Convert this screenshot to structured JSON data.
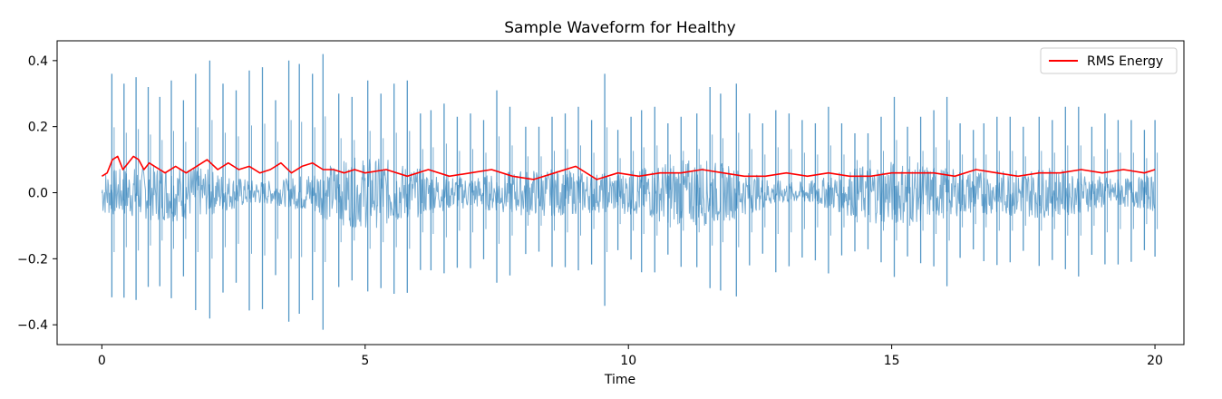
{
  "chart_data": {
    "type": "line",
    "title": "Sample Waveform for Healthy",
    "xlabel": "Time",
    "ylabel": "",
    "xlim": [
      -0.85,
      20.55
    ],
    "ylim": [
      -0.46,
      0.46
    ],
    "x_ticks": [
      0,
      5,
      10,
      15,
      20
    ],
    "x_tick_labels": [
      "0",
      "5",
      "10",
      "15",
      "20"
    ],
    "y_ticks": [
      -0.4,
      -0.2,
      0.0,
      0.2,
      0.4
    ],
    "y_tick_labels": [
      "−0.4",
      "−0.2",
      "0.0",
      "0.2",
      "0.4"
    ],
    "grid": false,
    "legend": {
      "placement": "top-right",
      "entries": [
        "RMS Energy"
      ]
    },
    "series": [
      {
        "kind": "waveform",
        "color": "#1f77b4",
        "opacity": 0.6,
        "x_start": 0,
        "x_end": 20,
        "noise_envelope": 0.11,
        "spikes": [
          {
            "x": 0.19,
            "amp": 0.36
          },
          {
            "x": 0.42,
            "amp": 0.33
          },
          {
            "x": 0.65,
            "amp": 0.35
          },
          {
            "x": 0.88,
            "amp": 0.32
          },
          {
            "x": 1.1,
            "amp": 0.29
          },
          {
            "x": 1.32,
            "amp": 0.34
          },
          {
            "x": 1.55,
            "amp": 0.28
          },
          {
            "x": 1.78,
            "amp": 0.36
          },
          {
            "x": 2.05,
            "amp": 0.4
          },
          {
            "x": 2.3,
            "amp": 0.33
          },
          {
            "x": 2.55,
            "amp": 0.31
          },
          {
            "x": 2.8,
            "amp": 0.37
          },
          {
            "x": 3.05,
            "amp": 0.38
          },
          {
            "x": 3.3,
            "amp": 0.28
          },
          {
            "x": 3.55,
            "amp": 0.4
          },
          {
            "x": 3.75,
            "amp": 0.39
          },
          {
            "x": 4.0,
            "amp": 0.36
          },
          {
            "x": 4.2,
            "amp": 0.42
          },
          {
            "x": 4.5,
            "amp": 0.3
          },
          {
            "x": 4.75,
            "amp": 0.29
          },
          {
            "x": 5.05,
            "amp": 0.34
          },
          {
            "x": 5.3,
            "amp": 0.3
          },
          {
            "x": 5.55,
            "amp": 0.33
          },
          {
            "x": 5.8,
            "amp": 0.34
          },
          {
            "x": 6.05,
            "amp": 0.24
          },
          {
            "x": 6.25,
            "amp": 0.25
          },
          {
            "x": 6.5,
            "amp": 0.27
          },
          {
            "x": 6.75,
            "amp": 0.23
          },
          {
            "x": 7.0,
            "amp": 0.24
          },
          {
            "x": 7.25,
            "amp": 0.22
          },
          {
            "x": 7.5,
            "amp": 0.31
          },
          {
            "x": 7.75,
            "amp": 0.26
          },
          {
            "x": 8.05,
            "amp": 0.2
          },
          {
            "x": 8.3,
            "amp": 0.2
          },
          {
            "x": 8.55,
            "amp": 0.23
          },
          {
            "x": 8.8,
            "amp": 0.24
          },
          {
            "x": 9.05,
            "amp": 0.26
          },
          {
            "x": 9.3,
            "amp": 0.22
          },
          {
            "x": 9.55,
            "amp": 0.36
          },
          {
            "x": 9.8,
            "amp": 0.19
          },
          {
            "x": 10.05,
            "amp": 0.23
          },
          {
            "x": 10.25,
            "amp": 0.25
          },
          {
            "x": 10.5,
            "amp": 0.26
          },
          {
            "x": 10.75,
            "amp": 0.21
          },
          {
            "x": 11.0,
            "amp": 0.23
          },
          {
            "x": 11.3,
            "amp": 0.24
          },
          {
            "x": 11.55,
            "amp": 0.32
          },
          {
            "x": 11.75,
            "amp": 0.3
          },
          {
            "x": 12.05,
            "amp": 0.33
          },
          {
            "x": 12.3,
            "amp": 0.24
          },
          {
            "x": 12.55,
            "amp": 0.21
          },
          {
            "x": 12.8,
            "amp": 0.25
          },
          {
            "x": 13.05,
            "amp": 0.24
          },
          {
            "x": 13.3,
            "amp": 0.22
          },
          {
            "x": 13.55,
            "amp": 0.21
          },
          {
            "x": 13.8,
            "amp": 0.26
          },
          {
            "x": 14.05,
            "amp": 0.21
          },
          {
            "x": 14.3,
            "amp": 0.18
          },
          {
            "x": 14.55,
            "amp": 0.18
          },
          {
            "x": 14.8,
            "amp": 0.23
          },
          {
            "x": 15.05,
            "amp": 0.29
          },
          {
            "x": 15.3,
            "amp": 0.2
          },
          {
            "x": 15.55,
            "amp": 0.23
          },
          {
            "x": 15.8,
            "amp": 0.25
          },
          {
            "x": 16.05,
            "amp": 0.29
          },
          {
            "x": 16.3,
            "amp": 0.21
          },
          {
            "x": 16.55,
            "amp": 0.19
          },
          {
            "x": 16.75,
            "amp": 0.21
          },
          {
            "x": 17.0,
            "amp": 0.23
          },
          {
            "x": 17.25,
            "amp": 0.23
          },
          {
            "x": 17.5,
            "amp": 0.2
          },
          {
            "x": 17.8,
            "amp": 0.23
          },
          {
            "x": 18.05,
            "amp": 0.22
          },
          {
            "x": 18.3,
            "amp": 0.26
          },
          {
            "x": 18.55,
            "amp": 0.26
          },
          {
            "x": 18.8,
            "amp": 0.2
          },
          {
            "x": 19.05,
            "amp": 0.24
          },
          {
            "x": 19.3,
            "amp": 0.22
          },
          {
            "x": 19.55,
            "amp": 0.22
          },
          {
            "x": 19.8,
            "amp": 0.19
          },
          {
            "x": 20.0,
            "amp": 0.22
          }
        ]
      },
      {
        "name": "RMS Energy",
        "kind": "line",
        "color": "#ff0000",
        "x": [
          0.0,
          0.1,
          0.2,
          0.3,
          0.4,
          0.5,
          0.6,
          0.7,
          0.8,
          0.9,
          1.0,
          1.2,
          1.4,
          1.6,
          1.8,
          2.0,
          2.2,
          2.4,
          2.6,
          2.8,
          3.0,
          3.2,
          3.4,
          3.6,
          3.8,
          4.0,
          4.2,
          4.4,
          4.6,
          4.8,
          5.0,
          5.4,
          5.8,
          6.2,
          6.6,
          7.0,
          7.4,
          7.8,
          8.2,
          8.6,
          9.0,
          9.4,
          9.8,
          10.2,
          10.6,
          11.0,
          11.4,
          11.8,
          12.2,
          12.6,
          13.0,
          13.4,
          13.8,
          14.2,
          14.6,
          15.0,
          15.4,
          15.8,
          16.2,
          16.6,
          17.0,
          17.4,
          17.8,
          18.2,
          18.6,
          19.0,
          19.4,
          19.8,
          20.0
        ],
        "y": [
          0.05,
          0.06,
          0.1,
          0.11,
          0.07,
          0.09,
          0.11,
          0.1,
          0.07,
          0.09,
          0.08,
          0.06,
          0.08,
          0.06,
          0.08,
          0.1,
          0.07,
          0.09,
          0.07,
          0.08,
          0.06,
          0.07,
          0.09,
          0.06,
          0.08,
          0.09,
          0.07,
          0.07,
          0.06,
          0.07,
          0.06,
          0.07,
          0.05,
          0.07,
          0.05,
          0.06,
          0.07,
          0.05,
          0.04,
          0.06,
          0.08,
          0.04,
          0.06,
          0.05,
          0.06,
          0.06,
          0.07,
          0.06,
          0.05,
          0.05,
          0.06,
          0.05,
          0.06,
          0.05,
          0.05,
          0.06,
          0.06,
          0.06,
          0.05,
          0.07,
          0.06,
          0.05,
          0.06,
          0.06,
          0.07,
          0.06,
          0.07,
          0.06,
          0.07
        ]
      }
    ]
  }
}
